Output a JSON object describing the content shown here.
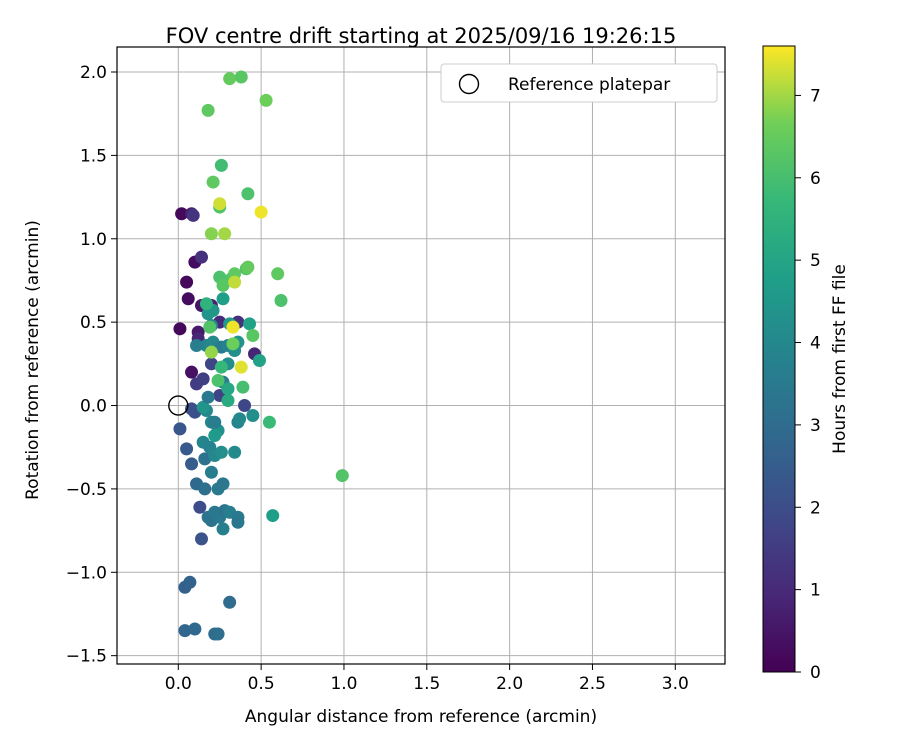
{
  "chart_data": {
    "type": "scatter",
    "title": "FOV centre drift starting at 2025/09/16 19:26:15",
    "xlabel": "Angular distance from reference (arcmin)",
    "ylabel": "Rotation from reference (arcmin)",
    "xlim": [
      -0.37,
      3.3
    ],
    "ylim": [
      -1.55,
      2.15
    ],
    "xticks": [
      0.0,
      0.5,
      1.0,
      1.5,
      2.0,
      2.5,
      3.0
    ],
    "xtick_labels": [
      "0.0",
      "0.5",
      "1.0",
      "1.5",
      "2.0",
      "2.5",
      "3.0"
    ],
    "yticks": [
      -1.5,
      -1.0,
      -0.5,
      0.0,
      0.5,
      1.0,
      1.5,
      2.0
    ],
    "ytick_labels": [
      "−1.5",
      "−1.0",
      "−0.5",
      "0.0",
      "0.5",
      "1.0",
      "1.5",
      "2.0"
    ],
    "grid": true,
    "legend": {
      "position": "top-right",
      "entries": [
        {
          "label": "Reference platepar",
          "marker": "open-circle"
        }
      ]
    },
    "reference_point": {
      "x": 0.0,
      "y": 0.0
    },
    "colorbar": {
      "label": "Hours from first FF file",
      "colormap": "viridis",
      "min": 0,
      "max": 7.6,
      "ticks": [
        0,
        1,
        2,
        3,
        4,
        5,
        6,
        7
      ],
      "tick_labels": [
        "0",
        "1",
        "2",
        "3",
        "4",
        "5",
        "6",
        "7"
      ]
    },
    "points": [
      {
        "x": 0.02,
        "y": 1.15,
        "c": 0.2
      },
      {
        "x": 0.08,
        "y": 1.15,
        "c": 0.8
      },
      {
        "x": 0.09,
        "y": 1.14,
        "c": 1.3
      },
      {
        "x": 0.05,
        "y": 0.74,
        "c": 0.2
      },
      {
        "x": 0.06,
        "y": 0.64,
        "c": 0.3
      },
      {
        "x": 0.01,
        "y": 0.46,
        "c": 0.2
      },
      {
        "x": 0.1,
        "y": 0.86,
        "c": 0.3
      },
      {
        "x": 0.14,
        "y": 0.89,
        "c": 1.2
      },
      {
        "x": 0.08,
        "y": 0.2,
        "c": 0.4
      },
      {
        "x": 0.14,
        "y": 0.6,
        "c": 0.5
      },
      {
        "x": 0.12,
        "y": 0.44,
        "c": 0.6
      },
      {
        "x": 0.12,
        "y": 0.4,
        "c": 0.9
      },
      {
        "x": 0.2,
        "y": 0.6,
        "c": 0.8
      },
      {
        "x": 0.25,
        "y": 0.5,
        "c": 1.0
      },
      {
        "x": 0.36,
        "y": 0.5,
        "c": 1.2
      },
      {
        "x": 0.46,
        "y": 0.31,
        "c": 0.9
      },
      {
        "x": 0.11,
        "y": 0.13,
        "c": 1.5
      },
      {
        "x": 0.15,
        "y": 0.16,
        "c": 1.6
      },
      {
        "x": 0.2,
        "y": 0.25,
        "c": 1.8
      },
      {
        "x": 0.25,
        "y": 0.06,
        "c": 1.7
      },
      {
        "x": 0.4,
        "y": 0.0,
        "c": 1.8
      },
      {
        "x": 0.08,
        "y": -0.02,
        "c": 2.0
      },
      {
        "x": 0.1,
        "y": -0.04,
        "c": 2.1
      },
      {
        "x": 0.01,
        "y": -0.14,
        "c": 2.3
      },
      {
        "x": 0.05,
        "y": -0.26,
        "c": 2.4
      },
      {
        "x": 0.08,
        "y": -0.35,
        "c": 2.5
      },
      {
        "x": 0.13,
        "y": -0.61,
        "c": 2.0
      },
      {
        "x": 0.14,
        "y": -0.8,
        "c": 2.2
      },
      {
        "x": 0.04,
        "y": -1.09,
        "c": 2.6
      },
      {
        "x": 0.07,
        "y": -1.06,
        "c": 2.7
      },
      {
        "x": 0.04,
        "y": -1.35,
        "c": 2.8
      },
      {
        "x": 0.1,
        "y": -1.34,
        "c": 2.9
      },
      {
        "x": 0.22,
        "y": -1.37,
        "c": 3.0
      },
      {
        "x": 0.24,
        "y": -1.37,
        "c": 3.1
      },
      {
        "x": 0.31,
        "y": -1.18,
        "c": 3.0
      },
      {
        "x": 0.11,
        "y": -0.47,
        "c": 2.9
      },
      {
        "x": 0.16,
        "y": -0.5,
        "c": 3.1
      },
      {
        "x": 0.18,
        "y": -0.67,
        "c": 3.2
      },
      {
        "x": 0.2,
        "y": -0.69,
        "c": 3.3
      },
      {
        "x": 0.22,
        "y": -0.64,
        "c": 3.4
      },
      {
        "x": 0.25,
        "y": -0.67,
        "c": 3.5
      },
      {
        "x": 0.28,
        "y": -0.63,
        "c": 3.3
      },
      {
        "x": 0.31,
        "y": -0.64,
        "c": 3.6
      },
      {
        "x": 0.36,
        "y": -0.67,
        "c": 3.5
      },
      {
        "x": 0.27,
        "y": -0.74,
        "c": 3.7
      },
      {
        "x": 0.36,
        "y": -0.7,
        "c": 3.4
      },
      {
        "x": 0.24,
        "y": -0.5,
        "c": 3.5
      },
      {
        "x": 0.27,
        "y": -0.47,
        "c": 3.4
      },
      {
        "x": 0.16,
        "y": -0.32,
        "c": 3.2
      },
      {
        "x": 0.2,
        "y": -0.4,
        "c": 3.6
      },
      {
        "x": 0.15,
        "y": -0.22,
        "c": 3.9
      },
      {
        "x": 0.19,
        "y": -0.25,
        "c": 3.8
      },
      {
        "x": 0.22,
        "y": -0.3,
        "c": 4.0
      },
      {
        "x": 0.24,
        "y": -0.15,
        "c": 4.3
      },
      {
        "x": 0.2,
        "y": -0.1,
        "c": 3.9
      },
      {
        "x": 0.17,
        "y": -0.03,
        "c": 4.0
      },
      {
        "x": 0.15,
        "y": -0.01,
        "c": 4.4
      },
      {
        "x": 0.26,
        "y": -0.28,
        "c": 4.2
      },
      {
        "x": 0.34,
        "y": -0.28,
        "c": 4.1
      },
      {
        "x": 0.22,
        "y": -0.1,
        "c": 3.6
      },
      {
        "x": 0.36,
        "y": -0.1,
        "c": 3.8
      },
      {
        "x": 0.37,
        "y": -0.08,
        "c": 4.0
      },
      {
        "x": 0.45,
        "y": -0.06,
        "c": 4.2
      },
      {
        "x": 0.18,
        "y": 0.05,
        "c": 3.5
      },
      {
        "x": 0.27,
        "y": 0.14,
        "c": 3.6
      },
      {
        "x": 0.3,
        "y": 0.25,
        "c": 4.2
      },
      {
        "x": 0.17,
        "y": 0.36,
        "c": 3.9
      },
      {
        "x": 0.21,
        "y": 0.38,
        "c": 4.0
      },
      {
        "x": 0.26,
        "y": 0.35,
        "c": 3.5
      },
      {
        "x": 0.3,
        "y": 0.36,
        "c": 3.8
      },
      {
        "x": 0.36,
        "y": 0.38,
        "c": 4.4
      },
      {
        "x": 0.34,
        "y": 0.33,
        "c": 4.2
      },
      {
        "x": 0.11,
        "y": 0.36,
        "c": 3.7
      },
      {
        "x": 0.18,
        "y": 0.55,
        "c": 4.4
      },
      {
        "x": 0.21,
        "y": 0.57,
        "c": 4.5
      },
      {
        "x": 0.2,
        "y": 0.48,
        "c": 4.0
      },
      {
        "x": 0.27,
        "y": 0.64,
        "c": 4.8
      },
      {
        "x": 0.31,
        "y": 0.49,
        "c": 4.6
      },
      {
        "x": 0.43,
        "y": 0.49,
        "c": 4.9
      },
      {
        "x": 0.49,
        "y": 0.27,
        "c": 4.9
      },
      {
        "x": 0.3,
        "y": 0.1,
        "c": 5.1
      },
      {
        "x": 0.3,
        "y": 0.03,
        "c": 5.2
      },
      {
        "x": 0.57,
        "y": -0.66,
        "c": 4.8
      },
      {
        "x": 0.55,
        "y": -0.1,
        "c": 5.8
      },
      {
        "x": 0.99,
        "y": -0.42,
        "c": 6.2
      },
      {
        "x": 0.22,
        "y": -0.18,
        "c": 4.6
      },
      {
        "x": 0.17,
        "y": 0.61,
        "c": 5.5
      },
      {
        "x": 0.19,
        "y": 0.47,
        "c": 6.2
      },
      {
        "x": 0.26,
        "y": 0.23,
        "c": 5.7
      },
      {
        "x": 0.24,
        "y": 0.15,
        "c": 6.1
      },
      {
        "x": 0.39,
        "y": 0.11,
        "c": 6.0
      },
      {
        "x": 0.45,
        "y": 0.42,
        "c": 6.3
      },
      {
        "x": 0.32,
        "y": 0.76,
        "c": 6.2
      },
      {
        "x": 0.25,
        "y": 0.77,
        "c": 6.1
      },
      {
        "x": 0.27,
        "y": 0.72,
        "c": 6.3
      },
      {
        "x": 0.34,
        "y": 0.79,
        "c": 6.4
      },
      {
        "x": 0.41,
        "y": 0.82,
        "c": 6.2
      },
      {
        "x": 0.42,
        "y": 0.83,
        "c": 6.5
      },
      {
        "x": 0.6,
        "y": 0.79,
        "c": 6.4
      },
      {
        "x": 0.62,
        "y": 0.63,
        "c": 6.1
      },
      {
        "x": 0.33,
        "y": 0.37,
        "c": 6.6
      },
      {
        "x": 0.2,
        "y": 0.32,
        "c": 6.9
      },
      {
        "x": 0.21,
        "y": 1.34,
        "c": 6.4
      },
      {
        "x": 0.26,
        "y": 1.44,
        "c": 5.9
      },
      {
        "x": 0.25,
        "y": 1.19,
        "c": 6.2
      },
      {
        "x": 0.42,
        "y": 1.27,
        "c": 6.1
      },
      {
        "x": 0.18,
        "y": 1.77,
        "c": 6.4
      },
      {
        "x": 0.31,
        "y": 1.96,
        "c": 6.5
      },
      {
        "x": 0.38,
        "y": 1.97,
        "c": 6.3
      },
      {
        "x": 0.53,
        "y": 1.83,
        "c": 6.6
      },
      {
        "x": 0.2,
        "y": 1.03,
        "c": 6.8
      },
      {
        "x": 0.28,
        "y": 1.03,
        "c": 7.0
      },
      {
        "x": 0.25,
        "y": 1.21,
        "c": 7.3
      },
      {
        "x": 0.5,
        "y": 1.16,
        "c": 7.5
      },
      {
        "x": 0.34,
        "y": 0.74,
        "c": 7.2
      },
      {
        "x": 0.33,
        "y": 0.47,
        "c": 7.5
      },
      {
        "x": 0.38,
        "y": 0.23,
        "c": 7.4
      }
    ]
  }
}
